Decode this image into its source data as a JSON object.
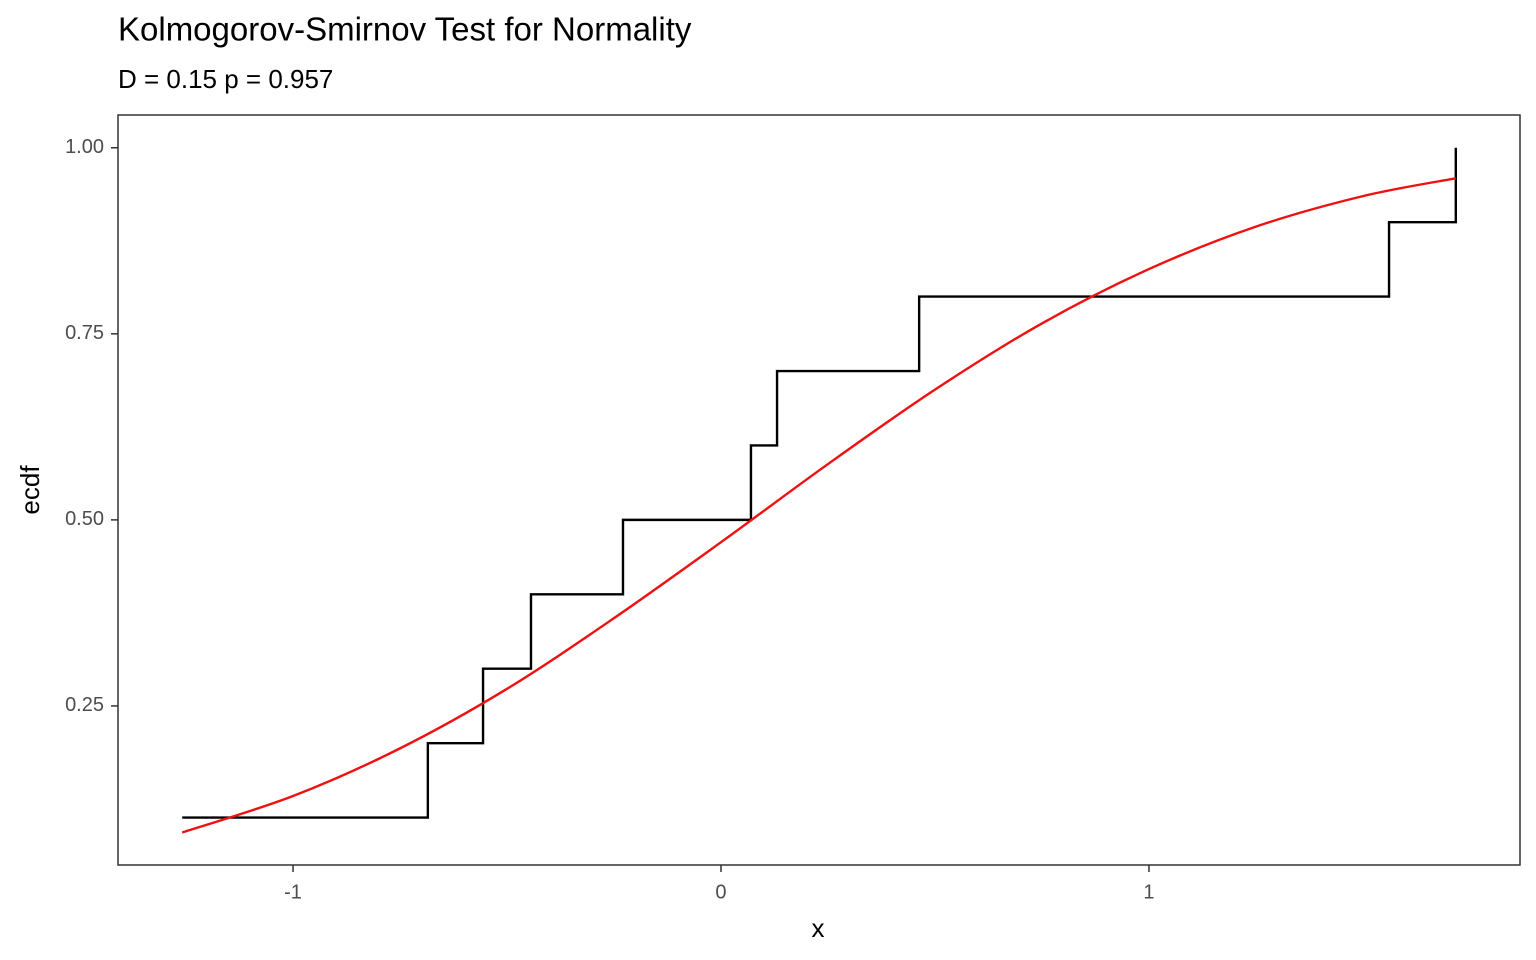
{
  "chart_data": {
    "type": "line",
    "title": "Kolmogorov-Smirnov Test for Normality",
    "subtitle": "D = 0.15 p = 0.957",
    "x_label": "x",
    "y_label": "ecdf",
    "xlim": [
      -1.409,
      1.867
    ],
    "ylim": [
      0.0363,
      1.044
    ],
    "xticks": [
      -1,
      0,
      1
    ],
    "yticks": [
      0.25,
      {
        "value": 0.5,
        "label": "0.50"
      },
      0.75,
      {
        "value": 1.0,
        "label": "1.00"
      }
    ],
    "grid": false,
    "series": [
      {
        "color": "#000000",
        "step": "post",
        "x": [
          -1.259,
          -0.685,
          -0.556,
          -0.444,
          -0.229,
          0.07,
          0.131,
          0.463,
          1.561,
          1.717
        ],
        "values": [
          0.1,
          0.2,
          0.3,
          0.4,
          0.5,
          0.6,
          0.7,
          0.8,
          0.9,
          1.0
        ]
      },
      {
        "color": "#ee1111",
        "x": [
          -1.259,
          -1.0,
          -0.75,
          -0.5,
          -0.25,
          0,
          0.25,
          0.5,
          0.75,
          1.0,
          1.25,
          1.5,
          1.717
        ],
        "values": [
          0.08,
          0.129,
          0.193,
          0.273,
          0.368,
          0.47,
          0.575,
          0.675,
          0.764,
          0.837,
          0.894,
          0.935,
          0.959
        ]
      }
    ]
  }
}
